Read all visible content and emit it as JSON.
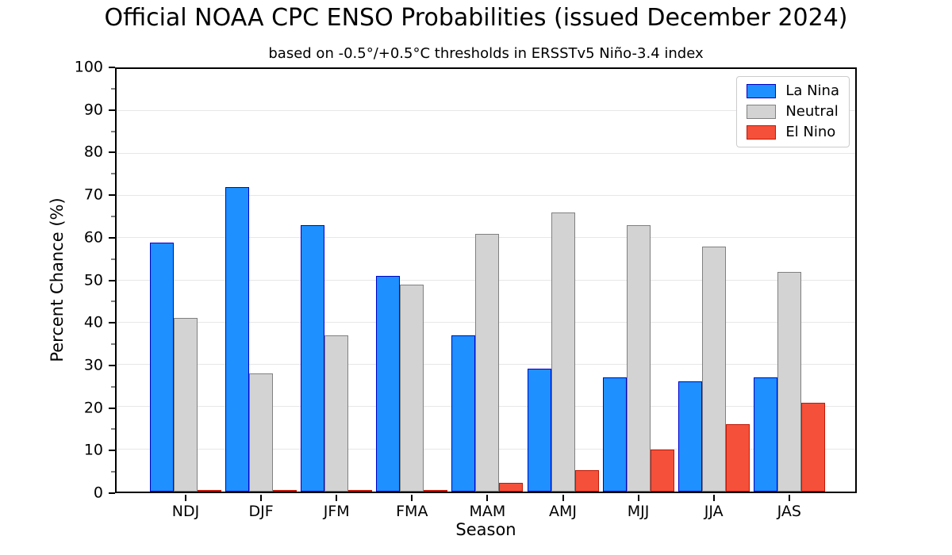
{
  "title": "Official NOAA CPC ENSO Probabilities (issued December 2024)",
  "subtitle": "based on -0.5°/+0.5°C thresholds in ERSSTv5 Niño-3.4 index",
  "chart_data": {
    "type": "bar",
    "title": "Official NOAA CPC ENSO Probabilities (issued December 2024)",
    "subtitle": "based on -0.5°/+0.5°C thresholds in ERSSTv5 Niño-3.4 index",
    "xlabel": "Season",
    "ylabel": "Percent Chance (%)",
    "categories": [
      "NDJ",
      "DJF",
      "JFM",
      "FMA",
      "MAM",
      "AMJ",
      "MJJ",
      "JJA",
      "JAS"
    ],
    "series": [
      {
        "name": "La Nina",
        "fill": "#1e90ff",
        "edge": "#0000cd",
        "values": [
          59,
          72,
          63,
          51,
          37,
          29,
          27,
          26,
          27
        ]
      },
      {
        "name": "Neutral",
        "fill": "#d3d3d3",
        "edge": "#808080",
        "values": [
          41,
          28,
          37,
          49,
          61,
          66,
          63,
          58,
          52
        ]
      },
      {
        "name": "El Nino",
        "fill": "#f4503a",
        "edge": "#c21807",
        "values": [
          0,
          0,
          0,
          0,
          2,
          5,
          10,
          16,
          21
        ]
      }
    ],
    "ylim": [
      0,
      100
    ],
    "yticks": [
      0,
      10,
      20,
      30,
      40,
      50,
      60,
      70,
      80,
      90,
      100
    ],
    "grid": true,
    "legend_position": "upper right"
  }
}
